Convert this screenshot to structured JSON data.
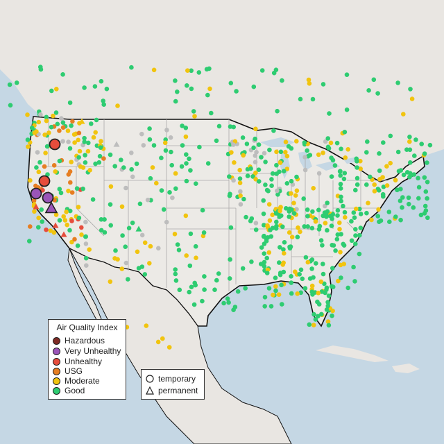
{
  "colors": {
    "water": "#c5d7e4",
    "land": "#e9e6e2",
    "state_border": "#aaaaaa",
    "country_border": "#111111"
  },
  "legend": {
    "title": "Air Quality Index",
    "items": [
      {
        "label": "Hazardous",
        "color": "#7e2b24"
      },
      {
        "label": "Very Unhealthy",
        "color": "#9a55b8"
      },
      {
        "label": "Unhealthy",
        "color": "#e64d3c"
      },
      {
        "label": "USG",
        "color": "#e67e22"
      },
      {
        "label": "Moderate",
        "color": "#f1c40f"
      },
      {
        "label": "Good",
        "color": "#2ecc71"
      }
    ]
  },
  "type_legend": {
    "items": [
      {
        "label": "temporary",
        "shape": "circle-icon"
      },
      {
        "label": "permanent",
        "shape": "triangle-icon"
      }
    ]
  }
}
